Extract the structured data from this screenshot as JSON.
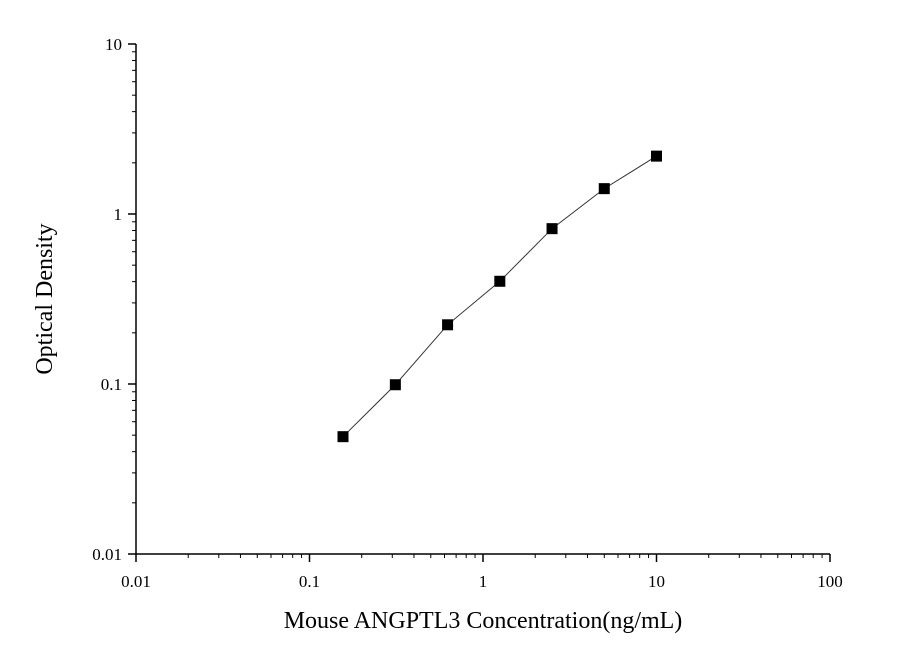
{
  "chart_data": {
    "type": "scatter",
    "xlabel": "Mouse ANGPTL3 Concentration(ng/mL)",
    "ylabel": "Optical Density",
    "x_scale": "log",
    "y_scale": "log",
    "xlim": [
      0.01,
      100
    ],
    "ylim": [
      0.01,
      10
    ],
    "x_ticks": [
      "0.01",
      "0.1",
      "1",
      "10",
      "100"
    ],
    "y_ticks": [
      "10",
      "1",
      "0.1",
      "0.01"
    ],
    "grid": false,
    "legend": "none",
    "marker": "square",
    "fit_line": true,
    "series": [
      {
        "x": [
          0.156,
          0.3125,
          0.625,
          1.25,
          2.5,
          5,
          10
        ],
        "y": [
          0.049,
          0.099,
          0.223,
          0.402,
          0.82,
          1.41,
          2.19
        ]
      }
    ]
  }
}
